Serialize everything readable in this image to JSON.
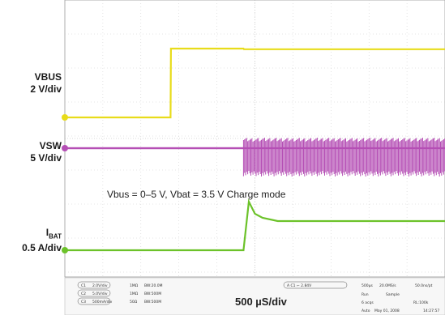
{
  "chart_data": {
    "type": "line",
    "title": "",
    "time_base": "500 µS/div",
    "xlim": [
      0,
      5000
    ],
    "x_unit": "µs",
    "grid": true,
    "annotation": "Vbus = 0–5 V, Vbat = 3.5 V Charge mode",
    "channels": [
      {
        "label": "VBUS",
        "scale": "2 V/div",
        "color": "#e8dc1a",
        "x": [
          0,
          1390,
          1395,
          2350,
          2355,
          5000
        ],
        "values": [
          0,
          0,
          5,
          5,
          4.95,
          4.95
        ],
        "unit": "V"
      },
      {
        "label": "VSW",
        "scale": "5 V/div",
        "color": "#b54fb5",
        "note": "switching begins at ~2350 µs",
        "x": [
          0,
          2350,
          5000
        ],
        "values": [
          3.5,
          3.5,
          3.5
        ],
        "unit": "V"
      },
      {
        "label": "I",
        "label_sub": "BAT",
        "scale": "0.5 A/div",
        "color": "#6cc22a",
        "x": [
          0,
          2350,
          2420,
          2500,
          2600,
          2800,
          5000
        ],
        "values": [
          0,
          0,
          0.6,
          0.45,
          0.4,
          0.36,
          0.36
        ],
        "unit": "A"
      }
    ]
  },
  "readout": {
    "ch1_id": "C1",
    "ch1_scale": "2.0V/div",
    "ch1_imp": "1MΩ",
    "ch1_bw": "BW:20.0M",
    "ch2_id": "C2",
    "ch2_scale": "5.0V/div",
    "ch2_imp": "1MΩ",
    "ch2_bw": "BW:500M",
    "ch3_id": "C3",
    "ch3_scale": "500mA/div",
    "ch3_imp": "50Ω",
    "ch3_bw": "BW:500M",
    "trigger": "A  C1  ⌐ 2.84V",
    "hscale": "500µs",
    "samplerate": "20.0MS/s",
    "points": "50.0ns/pt",
    "run": "Run",
    "mode": "Sample",
    "acqs": "6 acqs",
    "rl": "RL:100k",
    "auto": "Auto",
    "date": "May 01, 2008",
    "time": "14:27:57"
  },
  "labels": {
    "vbus_name": "VBUS",
    "vbus_scale": "2 V/div",
    "vsw_name": "VSW",
    "vsw_scale": "5 V/div",
    "ibat_name": "I",
    "ibat_sub": "BAT",
    "ibat_scale": "0.5 A/div"
  }
}
